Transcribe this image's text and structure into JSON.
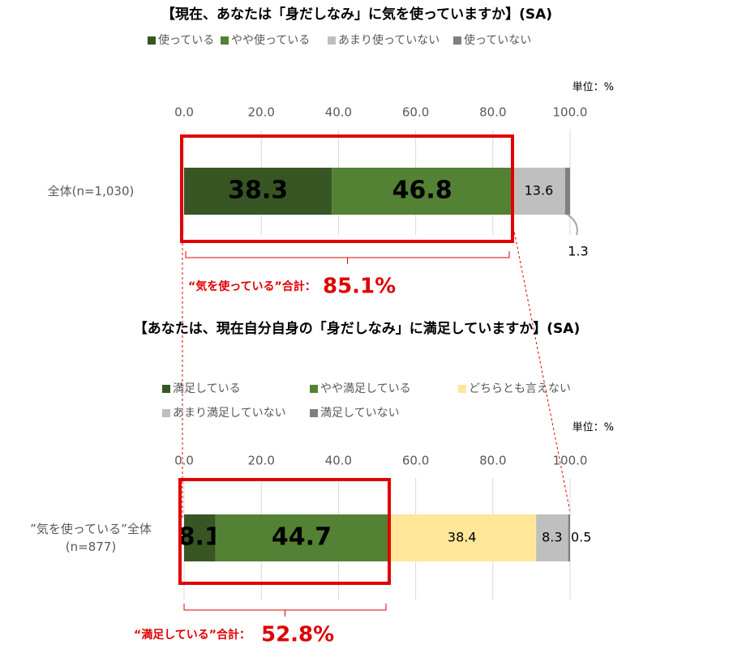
{
  "chart_data": [
    {
      "type": "stacked-bar",
      "title": "【現在、あなたは「身だしなみ」に気を使っていますか】(SA)",
      "unit": "単位：%",
      "categories": [
        "全体(n=1,030)"
      ],
      "series": [
        {
          "name": "使っている",
          "color": "#375623",
          "values": [
            38.3
          ]
        },
        {
          "name": "やや使っている",
          "color": "#548235",
          "values": [
            46.8
          ]
        },
        {
          "name": "あまり使っていない",
          "color": "#bfbfbf",
          "values": [
            13.6
          ]
        },
        {
          "name": "使っていない",
          "color": "#808080",
          "values": [
            1.3
          ]
        }
      ],
      "xlim": [
        0,
        100
      ],
      "xticks": [
        {
          "value": 0,
          "label": "0.0"
        },
        {
          "value": 20,
          "label": "20.0"
        },
        {
          "value": 40,
          "label": "40.0"
        },
        {
          "value": 60,
          "label": "60.0"
        },
        {
          "value": 80,
          "label": "80.0"
        },
        {
          "value": 100,
          "label": "100.0"
        }
      ],
      "grid": true,
      "annotation": {
        "text": "“気を使っている”合計：",
        "total": "85.1%"
      }
    },
    {
      "type": "stacked-bar",
      "title": "【あなたは、現在自分自身の「身だしなみ」に満足していますか】(SA)",
      "unit": "単位：%",
      "categories": [
        "”気を使っている”全体\n(n=877)"
      ],
      "series": [
        {
          "name": "満足している",
          "color": "#375623",
          "values": [
            8.1
          ]
        },
        {
          "name": "やや満足している",
          "color": "#548235",
          "values": [
            44.7
          ]
        },
        {
          "name": "どちらとも言えない",
          "color": "#ffe699",
          "values": [
            38.4
          ]
        },
        {
          "name": "あまり満足していない",
          "color": "#bfbfbf",
          "values": [
            8.3
          ]
        },
        {
          "name": "満足していない",
          "color": "#808080",
          "values": [
            0.5
          ]
        }
      ],
      "xlim": [
        0,
        100
      ],
      "xticks": [
        {
          "value": 0,
          "label": "0.0"
        },
        {
          "value": 20,
          "label": "20.0"
        },
        {
          "value": 40,
          "label": "40.0"
        },
        {
          "value": 60,
          "label": "60.0"
        },
        {
          "value": 80,
          "label": "80.0"
        },
        {
          "value": 100,
          "label": "100.0"
        }
      ],
      "grid": true,
      "annotation": {
        "text": "“満足している”合計：",
        "total": "52.8%"
      }
    }
  ]
}
